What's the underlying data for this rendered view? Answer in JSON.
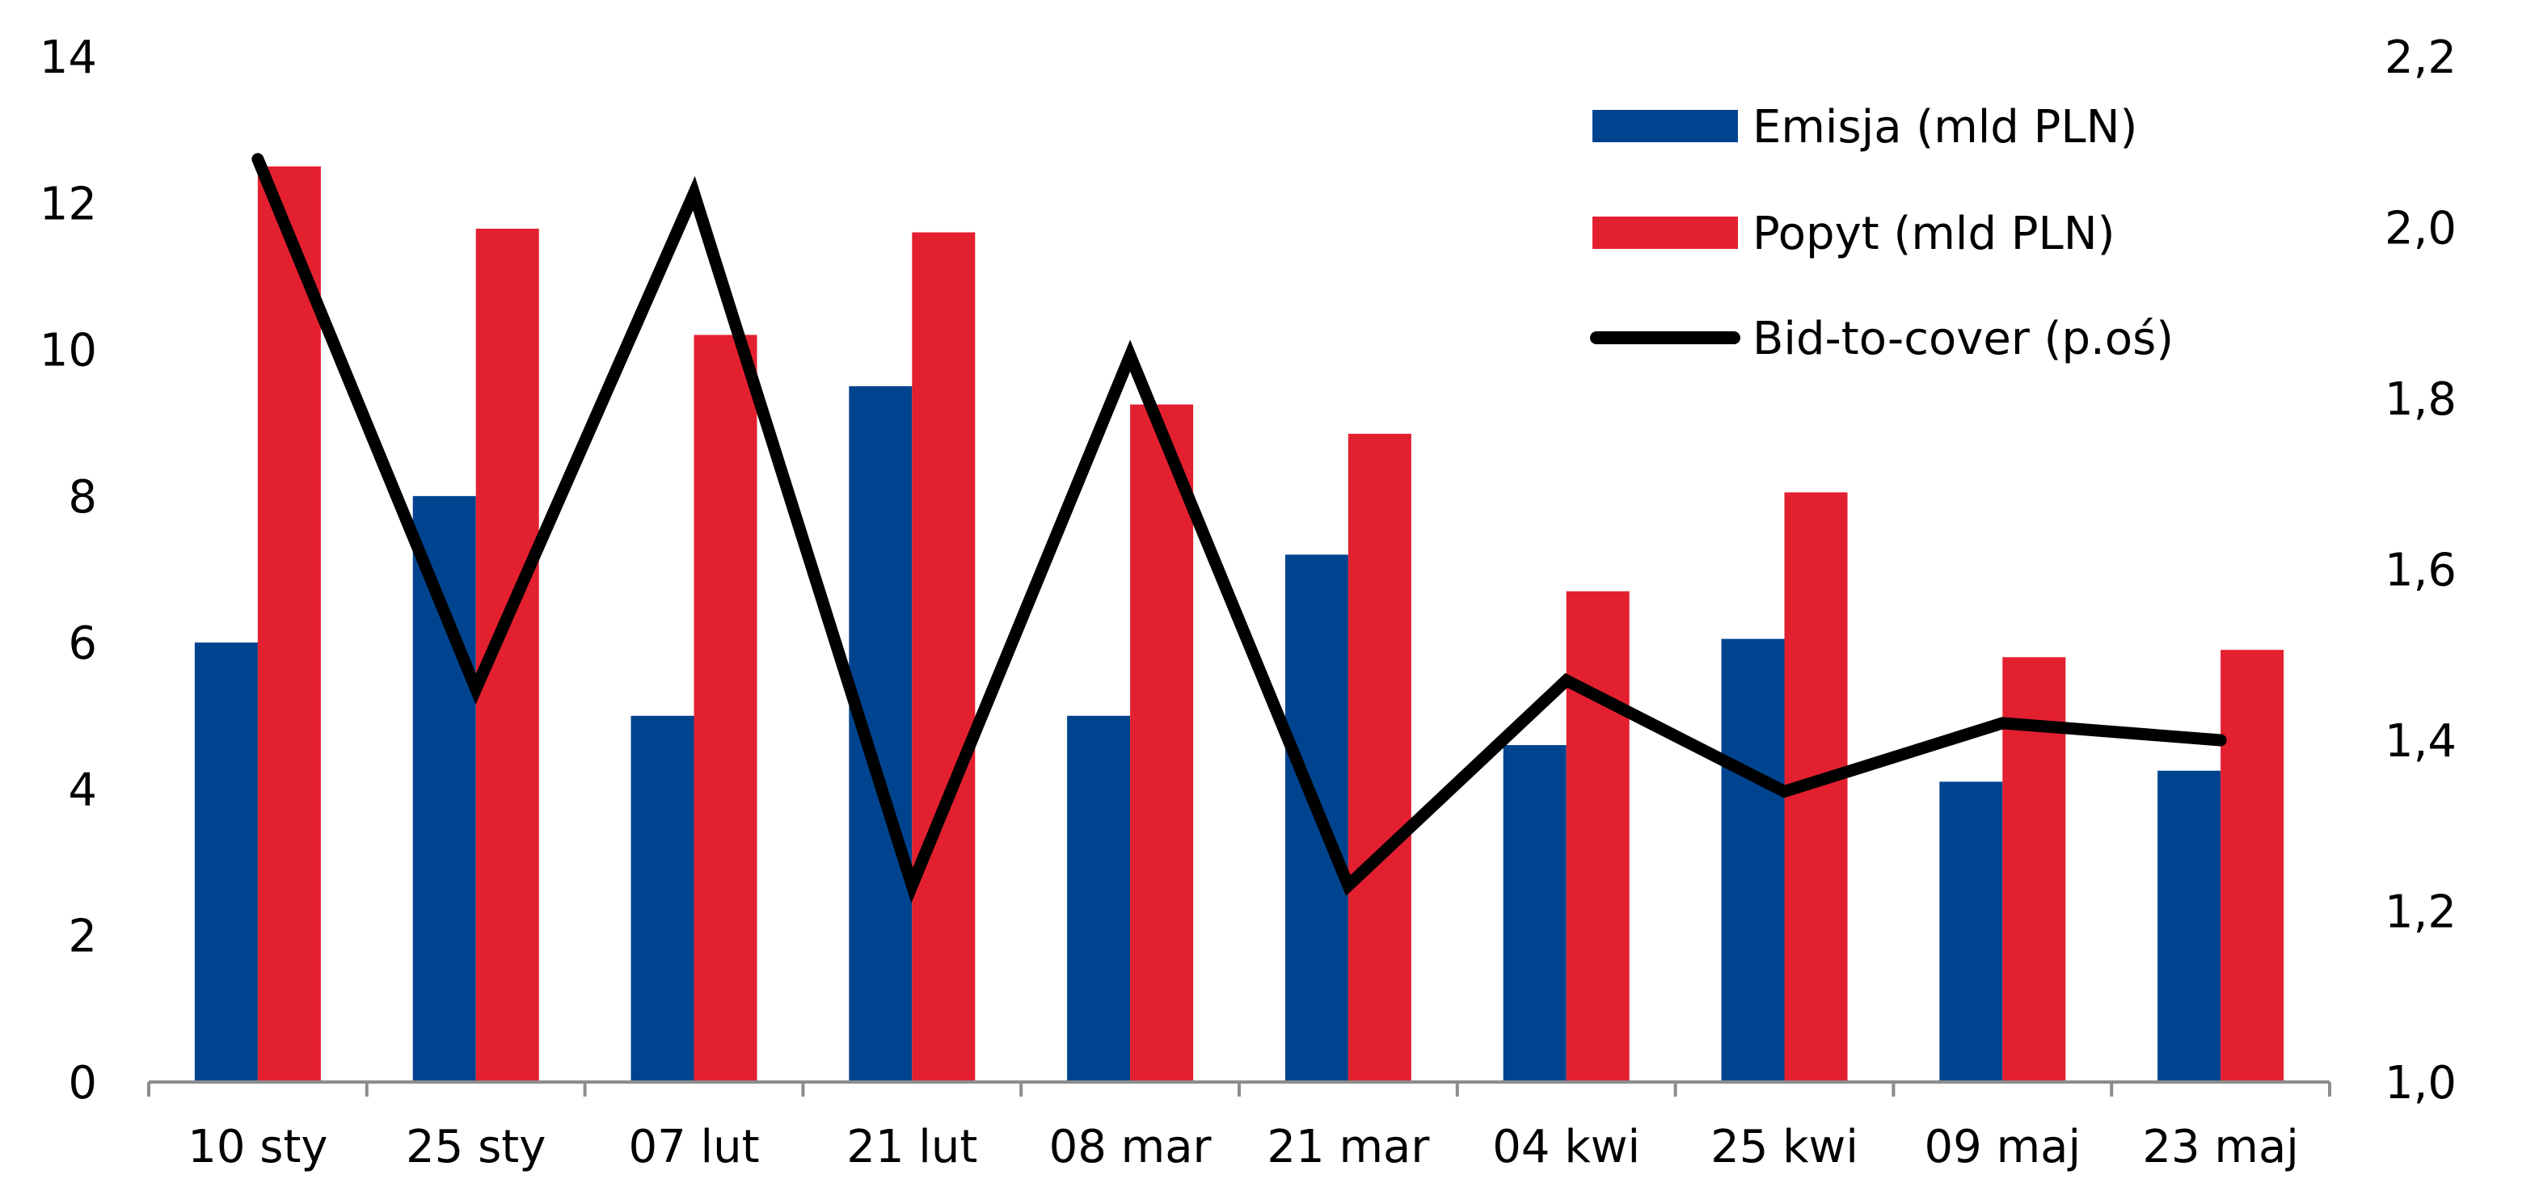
{
  "chart_data": {
    "type": "bar",
    "categories": [
      "10 sty",
      "25 sty",
      "07 lut",
      "21 lut",
      "08 mar",
      "21 mar",
      "04 kwi",
      "25 kwi",
      "09 maj",
      "23 maj"
    ],
    "series": [
      {
        "name": "Emisja (mld PLN)",
        "type": "bar",
        "axis": "left",
        "color": "#00448f",
        "values": [
          6.0,
          8.0,
          5.0,
          9.5,
          5.0,
          7.2,
          4.6,
          6.05,
          4.1,
          4.25
        ]
      },
      {
        "name": "Popyt (mld PLN)",
        "type": "bar",
        "axis": "left",
        "color": "#e3202f",
        "values": [
          12.5,
          11.65,
          10.2,
          11.6,
          9.25,
          8.85,
          6.7,
          8.05,
          5.8,
          5.9
        ]
      },
      {
        "name": "Bid-to-cover (p.oś)",
        "type": "line",
        "axis": "right",
        "color": "#000000",
        "values": [
          2.08,
          1.46,
          2.04,
          1.23,
          1.85,
          1.23,
          1.47,
          1.34,
          1.42,
          1.4
        ]
      }
    ],
    "y_left": {
      "min": 0,
      "max": 14,
      "ticks": [
        0,
        2,
        4,
        6,
        8,
        10,
        12,
        14
      ],
      "tick_labels": [
        "0",
        "2",
        "4",
        "6",
        "8",
        "10",
        "12",
        "14"
      ]
    },
    "y_right": {
      "min": 1.0,
      "max": 2.2,
      "ticks": [
        1.0,
        1.2,
        1.4,
        1.6,
        1.8,
        2.0,
        2.2
      ],
      "tick_labels": [
        "1,0",
        "1,2",
        "1,4",
        "1,6",
        "1,8",
        "2,0",
        "2,2"
      ]
    },
    "legend_position": "top-right",
    "grid": false,
    "axis_color": "#8c8c8c",
    "title": "",
    "xlabel": "",
    "ylabel": ""
  }
}
